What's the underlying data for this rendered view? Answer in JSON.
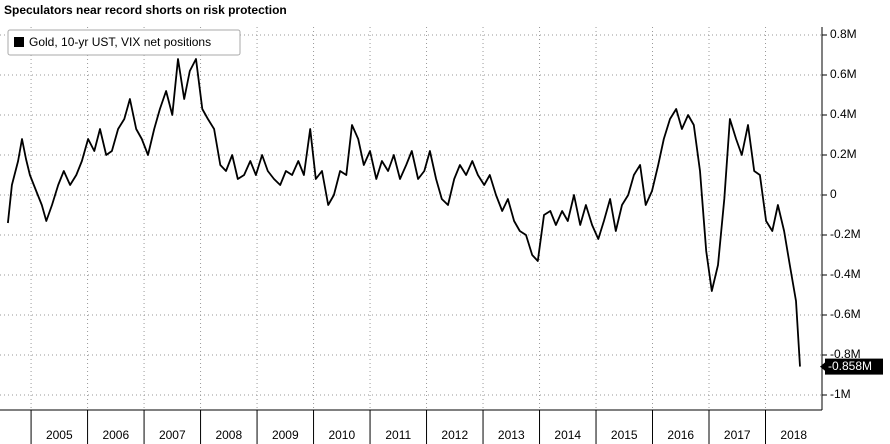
{
  "chart_data": {
    "type": "line",
    "title": "Speculators near record shorts on risk protection",
    "series": [
      {
        "name": "Gold, 10-yr UST, VIX net positions",
        "color": "#000000",
        "x": [
          2004.59,
          2004.66,
          2004.77,
          2004.84,
          2004.91,
          2004.98,
          2005.09,
          2005.19,
          2005.27,
          2005.37,
          2005.48,
          2005.58,
          2005.69,
          2005.8,
          2005.9,
          2006.01,
          2006.12,
          2006.22,
          2006.33,
          2006.43,
          2006.54,
          2006.65,
          2006.75,
          2006.86,
          2006.96,
          2007.07,
          2007.18,
          2007.28,
          2007.39,
          2007.5,
          2007.6,
          2007.71,
          2007.81,
          2007.92,
          2008.03,
          2008.13,
          2008.24,
          2008.35,
          2008.45,
          2008.56,
          2008.66,
          2008.77,
          2008.88,
          2008.98,
          2009.09,
          2009.19,
          2009.3,
          2009.41,
          2009.51,
          2009.62,
          2009.73,
          2009.83,
          2009.94,
          2010.04,
          2010.15,
          2010.26,
          2010.36,
          2010.47,
          2010.58,
          2010.68,
          2010.79,
          2010.89,
          2011.0,
          2011.11,
          2011.21,
          2011.32,
          2011.42,
          2011.53,
          2011.64,
          2011.74,
          2011.85,
          2011.96,
          2012.06,
          2012.17,
          2012.27,
          2012.38,
          2012.49,
          2012.59,
          2012.7,
          2012.81,
          2012.91,
          2013.02,
          2013.12,
          2013.23,
          2013.34,
          2013.44,
          2013.55,
          2013.65,
          2013.76,
          2013.87,
          2013.97,
          2014.08,
          2014.19,
          2014.29,
          2014.4,
          2014.5,
          2014.61,
          2014.72,
          2014.82,
          2014.93,
          2015.04,
          2015.14,
          2015.25,
          2015.35,
          2015.46,
          2015.57,
          2015.67,
          2015.78,
          2015.88,
          2015.99,
          2016.1,
          2016.2,
          2016.31,
          2016.42,
          2016.52,
          2016.63,
          2016.73,
          2016.84,
          2016.95,
          2017.05,
          2017.16,
          2017.27,
          2017.37,
          2017.48,
          2017.58,
          2017.69,
          2017.8,
          2017.9,
          2018.01,
          2018.12,
          2018.22,
          2018.33,
          2018.43,
          2018.54,
          2018.61
        ],
        "values": [
          -0.14,
          0.05,
          0.17,
          0.28,
          0.18,
          0.1,
          0.02,
          -0.05,
          -0.13,
          -0.05,
          0.05,
          0.12,
          0.05,
          0.1,
          0.17,
          0.28,
          0.22,
          0.33,
          0.2,
          0.22,
          0.33,
          0.38,
          0.48,
          0.33,
          0.28,
          0.2,
          0.33,
          0.43,
          0.52,
          0.4,
          0.68,
          0.48,
          0.62,
          0.68,
          0.43,
          0.38,
          0.33,
          0.15,
          0.12,
          0.2,
          0.08,
          0.1,
          0.17,
          0.1,
          0.2,
          0.12,
          0.08,
          0.05,
          0.12,
          0.1,
          0.17,
          0.1,
          0.33,
          0.08,
          0.12,
          -0.05,
          0.0,
          0.12,
          0.1,
          0.35,
          0.28,
          0.15,
          0.22,
          0.08,
          0.17,
          0.12,
          0.2,
          0.08,
          0.15,
          0.22,
          0.08,
          0.12,
          0.22,
          0.08,
          -0.02,
          -0.05,
          0.08,
          0.15,
          0.1,
          0.17,
          0.1,
          0.05,
          0.1,
          0.0,
          -0.08,
          -0.02,
          -0.13,
          -0.18,
          -0.2,
          -0.3,
          -0.33,
          -0.1,
          -0.08,
          -0.15,
          -0.08,
          -0.13,
          0.0,
          -0.15,
          -0.05,
          -0.15,
          -0.22,
          -0.13,
          -0.02,
          -0.18,
          -0.05,
          0.0,
          0.1,
          0.15,
          -0.05,
          0.02,
          0.15,
          0.28,
          0.38,
          0.43,
          0.33,
          0.4,
          0.35,
          0.12,
          -0.28,
          -0.48,
          -0.35,
          -0.02,
          0.38,
          0.28,
          0.2,
          0.35,
          0.12,
          0.1,
          -0.13,
          -0.18,
          -0.05,
          -0.18,
          -0.35,
          -0.53,
          -0.858
        ]
      }
    ],
    "end_label": "-0.858M",
    "xlim": [
      2004.45,
      2019.0
    ],
    "xticks": [
      {
        "value": 2005,
        "label": "2005"
      },
      {
        "value": 2006,
        "label": "2006"
      },
      {
        "value": 2007,
        "label": "2007"
      },
      {
        "value": 2008,
        "label": "2008"
      },
      {
        "value": 2009,
        "label": "2009"
      },
      {
        "value": 2010,
        "label": "2010"
      },
      {
        "value": 2011,
        "label": "2011"
      },
      {
        "value": 2012,
        "label": "2012"
      },
      {
        "value": 2013,
        "label": "2013"
      },
      {
        "value": 2014,
        "label": "2014"
      },
      {
        "value": 2015,
        "label": "2015"
      },
      {
        "value": 2016,
        "label": "2016"
      },
      {
        "value": 2017,
        "label": "2017"
      },
      {
        "value": 2018,
        "label": "2018"
      }
    ],
    "ylim": [
      -1.05,
      0.84
    ],
    "yticks": [
      {
        "value": 0.8,
        "label": "0.8M"
      },
      {
        "value": 0.6,
        "label": "0.6M"
      },
      {
        "value": 0.4,
        "label": "0.4M"
      },
      {
        "value": 0.2,
        "label": "0.2M"
      },
      0,
      {
        "value": -0.2,
        "label": "-0.2M"
      },
      {
        "value": -0.4,
        "label": "-0.4M"
      },
      {
        "value": -0.6,
        "label": "-0.6M"
      },
      {
        "value": -0.8,
        "label": "-0.8M"
      },
      {
        "value": -1,
        "label": "-1M"
      }
    ],
    "grid": true,
    "legend": "top-left"
  }
}
